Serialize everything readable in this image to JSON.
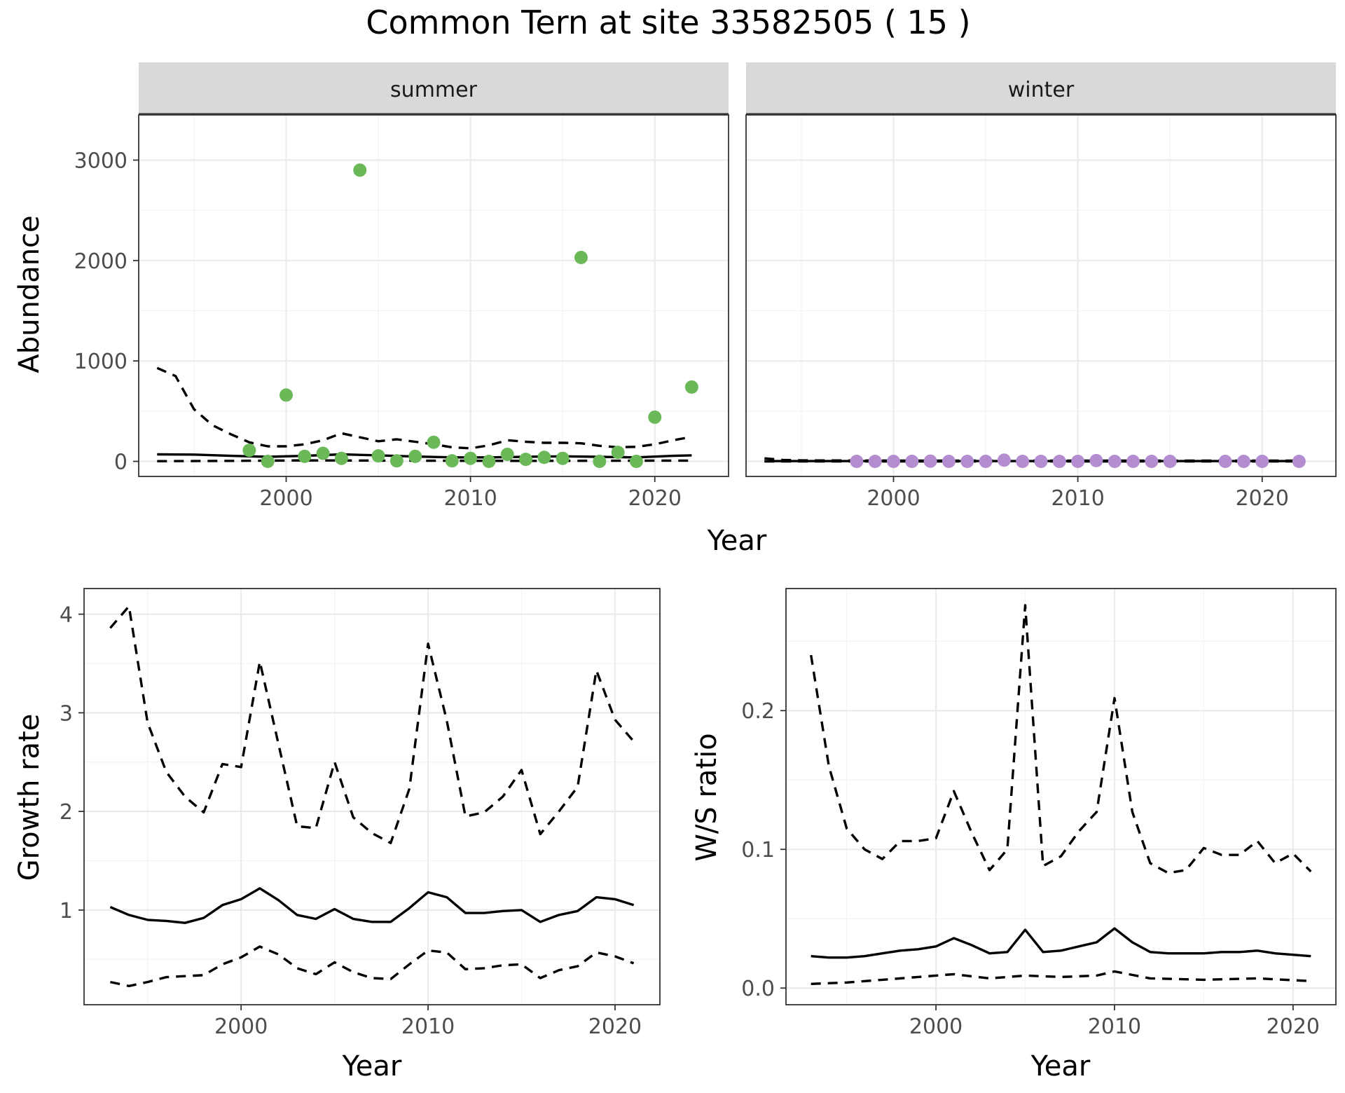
{
  "title": "Common Tern at site 33582505 ( 15 )",
  "colors": {
    "summer_points": "#6ab858",
    "winter_points": "#b38dd0"
  },
  "chart_data": [
    {
      "type": "scatter",
      "panel": "summer",
      "xlabel": "Year",
      "ylabel": "Abundance",
      "xlim": [
        1992,
        2024
      ],
      "ylim": [
        -150,
        3450
      ],
      "xticks": [
        2000,
        2010,
        2020
      ],
      "yticks": [
        0,
        1000,
        2000,
        3000
      ],
      "grid": true,
      "points": {
        "x": [
          1998,
          1999,
          2000,
          2001,
          2002,
          2003,
          2004,
          2005,
          2006,
          2007,
          2008,
          2009,
          2010,
          2011,
          2012,
          2013,
          2014,
          2015,
          2016,
          2017,
          2018,
          2019,
          2020,
          2022
        ],
        "y": [
          110,
          0,
          660,
          50,
          80,
          30,
          2900,
          55,
          5,
          50,
          190,
          5,
          30,
          0,
          70,
          20,
          40,
          30,
          2030,
          0,
          90,
          0,
          440,
          740
        ]
      },
      "lines": [
        {
          "style": "solid",
          "x": [
            1993,
            1995,
            1997,
            1999,
            2001,
            2003,
            2005,
            2007,
            2009,
            2011,
            2013,
            2015,
            2017,
            2019,
            2021,
            2022
          ],
          "y": [
            70,
            68,
            55,
            45,
            55,
            70,
            60,
            48,
            40,
            40,
            45,
            50,
            45,
            40,
            55,
            60
          ]
        },
        {
          "style": "dashed",
          "x": [
            1993,
            1994,
            1995,
            1996,
            1997,
            1998,
            1999,
            2000,
            2001,
            2002,
            2003,
            2004,
            2005,
            2006,
            2007,
            2008,
            2009,
            2010,
            2011,
            2012,
            2013,
            2014,
            2015,
            2016,
            2017,
            2018,
            2019,
            2020,
            2021,
            2022
          ],
          "y": [
            930,
            850,
            520,
            360,
            270,
            190,
            150,
            150,
            170,
            210,
            280,
            240,
            200,
            220,
            195,
            170,
            140,
            130,
            160,
            210,
            195,
            185,
            185,
            180,
            155,
            140,
            145,
            170,
            210,
            245
          ]
        },
        {
          "style": "dashed",
          "x": [
            1993,
            1997,
            2001,
            2005,
            2009,
            2013,
            2017,
            2022
          ],
          "y": [
            2,
            5,
            10,
            8,
            6,
            5,
            6,
            8
          ]
        }
      ]
    },
    {
      "type": "scatter",
      "panel": "winter",
      "xlabel": "Year",
      "ylabel": "Abundance",
      "xlim": [
        1992,
        2024
      ],
      "ylim": [
        -150,
        3450
      ],
      "xticks": [
        2000,
        2010,
        2020
      ],
      "yticks": [
        0,
        1000,
        2000,
        3000
      ],
      "grid": true,
      "points": {
        "x": [
          1998,
          1999,
          2000,
          2001,
          2002,
          2003,
          2004,
          2005,
          2006,
          2007,
          2008,
          2009,
          2010,
          2011,
          2012,
          2013,
          2014,
          2015,
          2018,
          2019,
          2020,
          2022
        ],
        "y": [
          0,
          0,
          0,
          0,
          2,
          0,
          0,
          0,
          12,
          0,
          0,
          0,
          0,
          8,
          0,
          0,
          0,
          0,
          0,
          0,
          0,
          0
        ]
      },
      "lines": [
        {
          "style": "solid",
          "x": [
            1993,
            2022
          ],
          "y": [
            3,
            3
          ]
        },
        {
          "style": "dashed",
          "x": [
            1993,
            1994,
            1995,
            2000,
            2010,
            2022
          ],
          "y": [
            30,
            15,
            10,
            8,
            8,
            8
          ]
        },
        {
          "style": "dashed",
          "x": [
            1993,
            2022
          ],
          "y": [
            0,
            0
          ]
        }
      ]
    },
    {
      "type": "line",
      "xlabel": "Year",
      "ylabel": "Growth rate",
      "xlim": [
        1991.6,
        2022.4
      ],
      "ylim": [
        0.04,
        4.26
      ],
      "xticks": [
        2000,
        2010,
        2020
      ],
      "yticks": [
        1,
        2,
        3,
        4
      ],
      "grid": true,
      "series": [
        {
          "style": "solid",
          "x": [
            1993,
            1994,
            1995,
            1996,
            1997,
            1998,
            1999,
            2000,
            2001,
            2002,
            2003,
            2004,
            2005,
            2006,
            2007,
            2008,
            2009,
            2010,
            2011,
            2012,
            2013,
            2014,
            2015,
            2016,
            2017,
            2018,
            2019,
            2020,
            2021
          ],
          "y": [
            1.03,
            0.95,
            0.9,
            0.89,
            0.87,
            0.92,
            1.05,
            1.11,
            1.22,
            1.1,
            0.95,
            0.91,
            1.01,
            0.91,
            0.88,
            0.88,
            1.02,
            1.18,
            1.13,
            0.97,
            0.97,
            0.99,
            1.0,
            0.88,
            0.95,
            0.99,
            1.13,
            1.11,
            1.05
          ]
        },
        {
          "style": "dashed",
          "x": [
            1993,
            1994,
            1995,
            1996,
            1997,
            1998,
            1999,
            2000,
            2001,
            2002,
            2003,
            2004,
            2005,
            2006,
            2007,
            2008,
            2009,
            2010,
            2011,
            2012,
            2013,
            2014,
            2015,
            2016,
            2017,
            2018,
            2019,
            2020,
            2021
          ],
          "y": [
            3.86,
            4.08,
            2.9,
            2.4,
            2.15,
            1.99,
            2.48,
            2.45,
            3.52,
            2.68,
            1.85,
            1.83,
            2.5,
            1.94,
            1.78,
            1.68,
            2.23,
            3.7,
            2.92,
            1.95,
            1.99,
            2.15,
            2.42,
            1.77,
            2.0,
            2.25,
            3.43,
            2.93,
            2.71
          ]
        },
        {
          "style": "dashed",
          "x": [
            1993,
            1994,
            1995,
            1996,
            1997,
            1998,
            1999,
            2000,
            2001,
            2002,
            2003,
            2004,
            2005,
            2006,
            2007,
            2008,
            2009,
            2010,
            2011,
            2012,
            2013,
            2014,
            2015,
            2016,
            2017,
            2018,
            2019,
            2020,
            2021
          ],
          "y": [
            0.27,
            0.23,
            0.27,
            0.32,
            0.33,
            0.34,
            0.45,
            0.52,
            0.63,
            0.55,
            0.41,
            0.35,
            0.47,
            0.37,
            0.31,
            0.3,
            0.45,
            0.59,
            0.57,
            0.4,
            0.41,
            0.44,
            0.45,
            0.31,
            0.39,
            0.43,
            0.57,
            0.53,
            0.46
          ]
        }
      ]
    },
    {
      "type": "line",
      "xlabel": "Year",
      "ylabel": "W/S ratio",
      "xlim": [
        1991.6,
        2022.4
      ],
      "ylim": [
        -0.012,
        0.288
      ],
      "xticks": [
        2000,
        2010,
        2020
      ],
      "yticks": [
        0.0,
        0.1,
        0.2
      ],
      "ytick_labels": [
        "0.0",
        "0.1",
        "0.2"
      ],
      "grid": true,
      "series": [
        {
          "style": "solid",
          "x": [
            1993,
            1994,
            1995,
            1996,
            1997,
            1998,
            1999,
            2000,
            2001,
            2002,
            2003,
            2004,
            2005,
            2006,
            2007,
            2008,
            2009,
            2010,
            2011,
            2012,
            2013,
            2014,
            2015,
            2016,
            2017,
            2018,
            2019,
            2020,
            2021
          ],
          "y": [
            0.023,
            0.022,
            0.022,
            0.023,
            0.025,
            0.027,
            0.028,
            0.03,
            0.036,
            0.031,
            0.025,
            0.026,
            0.042,
            0.026,
            0.027,
            0.03,
            0.033,
            0.043,
            0.033,
            0.026,
            0.025,
            0.025,
            0.025,
            0.026,
            0.026,
            0.027,
            0.025,
            0.024,
            0.023
          ]
        },
        {
          "style": "dashed",
          "x": [
            1993,
            1994,
            1995,
            1996,
            1997,
            1998,
            1999,
            2000,
            2001,
            2002,
            2003,
            2004,
            2005,
            2006,
            2007,
            2008,
            2009,
            2010,
            2011,
            2012,
            2013,
            2014,
            2015,
            2016,
            2017,
            2018,
            2019,
            2020,
            2021
          ],
          "y": [
            0.24,
            0.16,
            0.115,
            0.1,
            0.093,
            0.106,
            0.106,
            0.108,
            0.142,
            0.112,
            0.085,
            0.1,
            0.276,
            0.088,
            0.095,
            0.113,
            0.127,
            0.209,
            0.127,
            0.09,
            0.083,
            0.085,
            0.101,
            0.096,
            0.096,
            0.106,
            0.09,
            0.097,
            0.084
          ]
        },
        {
          "style": "dashed",
          "x": [
            1993,
            1995,
            1997,
            1999,
            2001,
            2003,
            2005,
            2007,
            2009,
            2010,
            2012,
            2015,
            2018,
            2021
          ],
          "y": [
            0.003,
            0.004,
            0.006,
            0.008,
            0.01,
            0.007,
            0.009,
            0.008,
            0.009,
            0.012,
            0.007,
            0.006,
            0.007,
            0.005
          ]
        }
      ]
    }
  ],
  "facets": {
    "summer": "summer",
    "winter": "winter"
  }
}
